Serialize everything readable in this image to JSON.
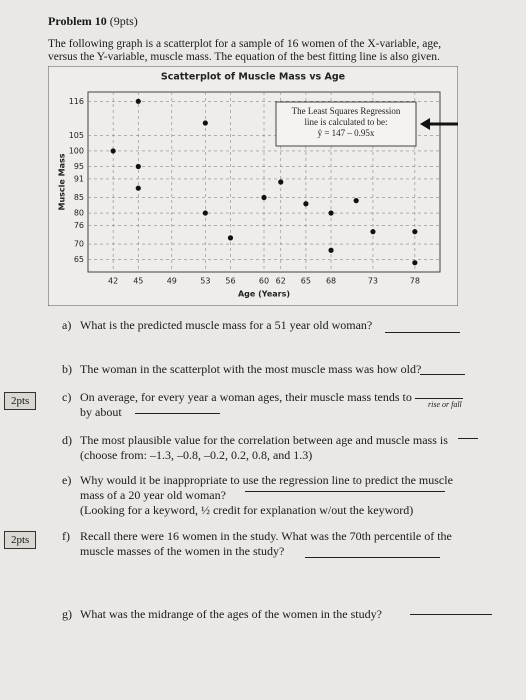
{
  "header": {
    "title": "Problem 10",
    "points": "(9pts)",
    "intro": [
      "The following graph is a scatterplot for a sample of 16 women of the X-variable, age,",
      "versus the Y-variable, muscle mass.  The equation of the best fitting line is also given."
    ]
  },
  "chart_data": {
    "type": "scatter",
    "title": "Scatterplot of Muscle Mass vs Age",
    "x_label": "Age (Years)",
    "y_label": "Muscle Mass",
    "color": "#111111",
    "grid": true,
    "annotation": [
      "The Least Squares Regression",
      "line is calculated to be:",
      "ŷ = 147 – 0.95x"
    ],
    "x": [
      42,
      45,
      45,
      45,
      53,
      53,
      56,
      60,
      62,
      65,
      68,
      68,
      71,
      73,
      78,
      78
    ],
    "values": [
      100,
      116,
      95,
      88,
      109,
      80,
      72,
      85,
      90,
      83,
      80,
      68,
      84,
      74,
      74,
      64
    ],
    "xlim": [
      39,
      81
    ],
    "ylim": [
      61,
      119
    ],
    "xticks": [
      42,
      45,
      49,
      53,
      56,
      60,
      62,
      65,
      68,
      73,
      78
    ],
    "yticks": [
      116,
      105,
      100,
      95,
      91,
      85,
      80,
      76,
      70,
      65
    ]
  },
  "questions": [
    {
      "label": "a)",
      "lines": [
        "What is the predicted muscle mass for a 51 year old woman?"
      ]
    },
    {
      "label": "b)",
      "lines": [
        "The woman in the scatterplot with the most muscle mass was how old?"
      ]
    },
    {
      "label": "c)",
      "lines": [
        "On average, for every year a woman ages, their muscle mass tends to",
        "by about"
      ],
      "note": "rise or fall",
      "points": "2pts"
    },
    {
      "label": "d)",
      "lines": [
        "The most plausible value for the correlation between age and muscle mass is",
        "(choose from:  –1.3, –0.8, –0.2, 0.2, 0.8, and 1.3)"
      ]
    },
    {
      "label": "e)",
      "lines": [
        "Why would it be inappropriate to use the regression line to predict the muscle",
        "mass of a 20 year old woman?",
        "(Looking for a keyword, ½ credit for explanation w/out the keyword)"
      ]
    },
    {
      "label": "f)",
      "lines": [
        "Recall there were 16 women in the study.  What was the 70th percentile of the",
        "muscle masses of the women in the study?"
      ],
      "points": "2pts"
    },
    {
      "label": "g)",
      "lines": [
        "What was the midrange of the ages of the women in the study?"
      ]
    }
  ]
}
